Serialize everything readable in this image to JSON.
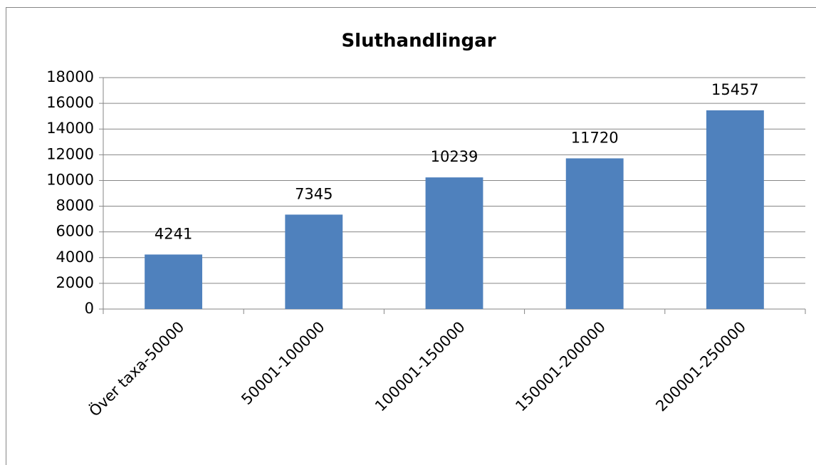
{
  "chart_data": {
    "type": "bar",
    "title": "Sluthandlingar",
    "categories": [
      "Över taxa-50000",
      "50001-100000",
      "100001-150000",
      "150001-200000",
      "200001-250000"
    ],
    "values": [
      4241,
      7345,
      10239,
      11720,
      15457
    ],
    "color": "#4f81bd",
    "ylim": [
      0,
      18000
    ],
    "yticks": [
      0,
      2000,
      4000,
      6000,
      8000,
      10000,
      12000,
      14000,
      16000,
      18000
    ],
    "grid": true
  }
}
